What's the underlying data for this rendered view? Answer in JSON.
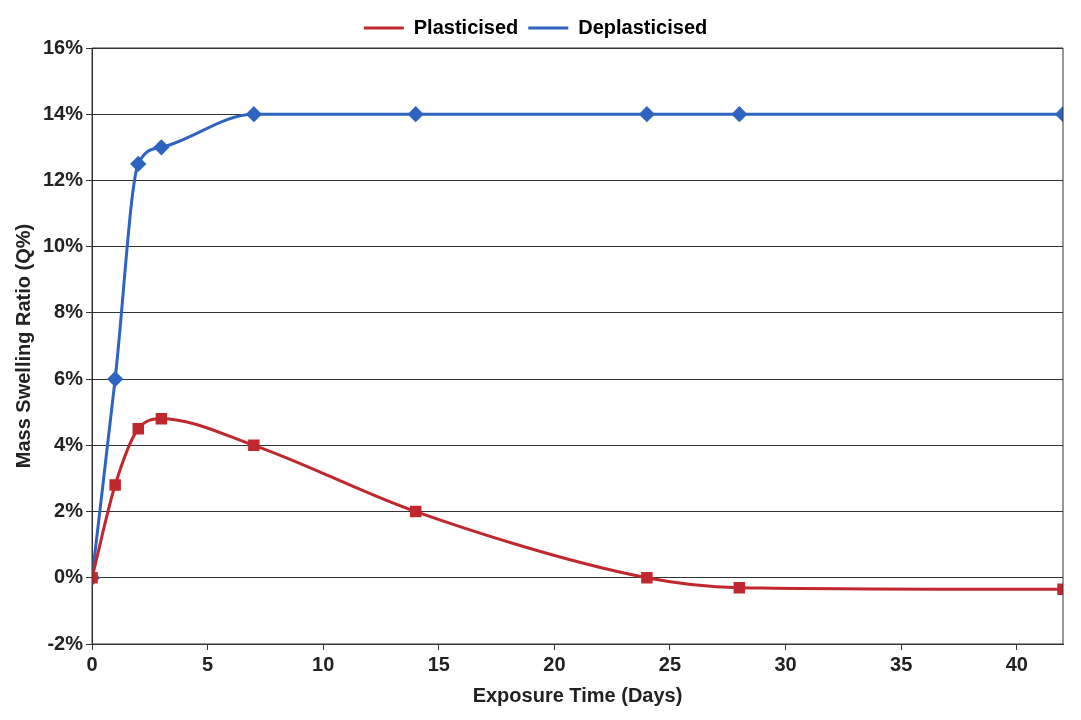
{
  "chart_data": {
    "type": "line",
    "xlabel": "Exposure Time (Days)",
    "ylabel": "Mass Swelling Ratio (Q%)",
    "xlim": [
      0,
      42
    ],
    "xticks": [
      0,
      5,
      10,
      15,
      20,
      25,
      30,
      35,
      40
    ],
    "ylim": [
      -2,
      16
    ],
    "yticks": [
      {
        "value": -2,
        "label": "-2%"
      },
      {
        "value": 0,
        "label": "0%"
      },
      {
        "value": 2,
        "label": "2%"
      },
      {
        "value": 4,
        "label": "4%"
      },
      {
        "value": 6,
        "label": "6%"
      },
      {
        "value": 8,
        "label": "8%"
      },
      {
        "value": 10,
        "label": "10%"
      },
      {
        "value": 12,
        "label": "12%"
      },
      {
        "value": 14,
        "label": "14%"
      },
      {
        "value": 16,
        "label": "16%"
      }
    ],
    "grid": "y",
    "legend": "top",
    "series": [
      {
        "name": "Plasticised",
        "color": "#c0282d",
        "marker": "square",
        "x": [
          0,
          1,
          2,
          3,
          7,
          14,
          24,
          28,
          42
        ],
        "values": [
          0,
          2.8,
          4.5,
          4.8,
          4.0,
          2.0,
          0.0,
          -0.3,
          -0.35
        ]
      },
      {
        "name": "Deplasticised",
        "color": "#2e64c0",
        "marker": "diamond",
        "x": [
          0,
          1,
          2,
          3,
          7,
          14,
          24,
          28,
          42
        ],
        "values": [
          0,
          6,
          12.5,
          13,
          14,
          14,
          14,
          14,
          14
        ]
      }
    ]
  }
}
